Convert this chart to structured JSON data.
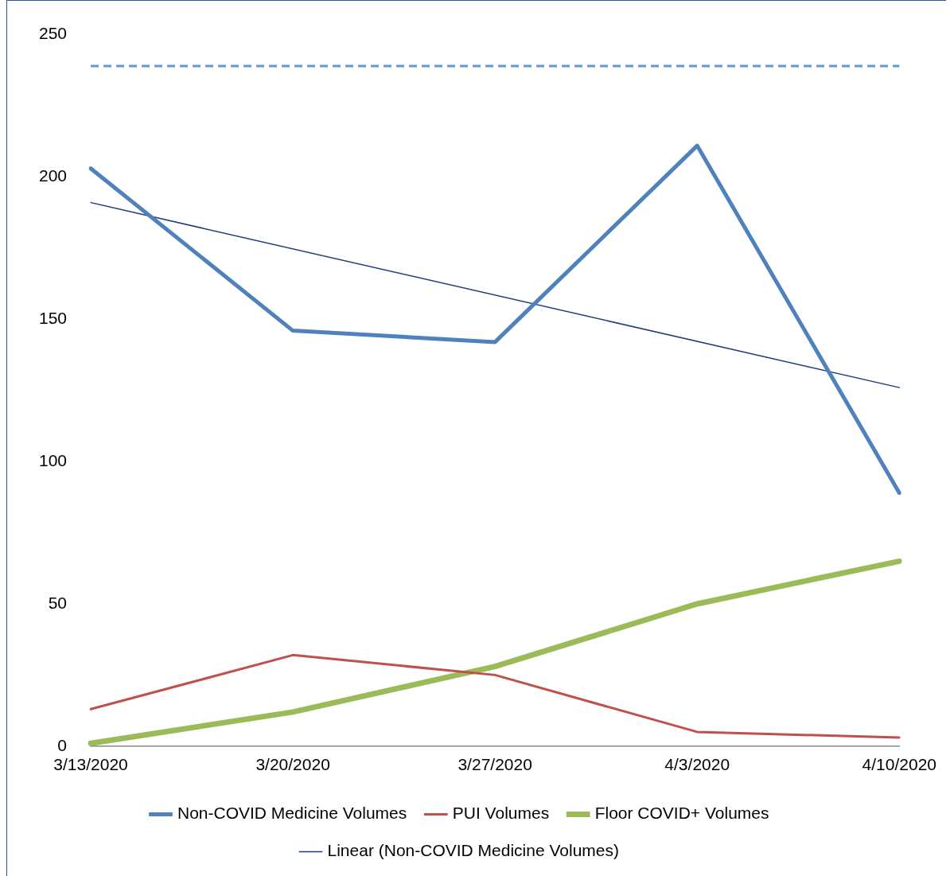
{
  "chart_data": {
    "type": "line",
    "categories": [
      "3/13/2020",
      "3/20/2020",
      "3/27/2020",
      "4/3/2020",
      "4/10/2020"
    ],
    "series": [
      {
        "name": "Non-COVID Medicine Volumes",
        "color": "#4f81bd",
        "values": [
          203,
          146,
          142,
          211,
          89
        ]
      },
      {
        "name": "PUI Volumes",
        "color": "#c0504d",
        "values": [
          13,
          32,
          25,
          5,
          3
        ]
      },
      {
        "name": "Floor COVID+ Volumes",
        "color": "#9bbb59",
        "values": [
          1,
          12,
          28,
          50,
          65
        ]
      },
      {
        "name": "Linear (Non-COVID Medicine Volumes)",
        "color": "#1f3d7a",
        "type": "line",
        "x": [
          "3/13/2020",
          "4/10/2020"
        ],
        "values": [
          191,
          126
        ]
      }
    ],
    "ylim": [
      0,
      250
    ],
    "yticks": [
      0,
      50,
      100,
      150,
      200,
      250
    ],
    "ref_lines": [
      {
        "axis": "y",
        "value": 239,
        "color": "#5b9bd5",
        "line_style": "dashed"
      }
    ],
    "grid": false,
    "legend": "bottom",
    "marker": "none",
    "line_style": "solid"
  }
}
